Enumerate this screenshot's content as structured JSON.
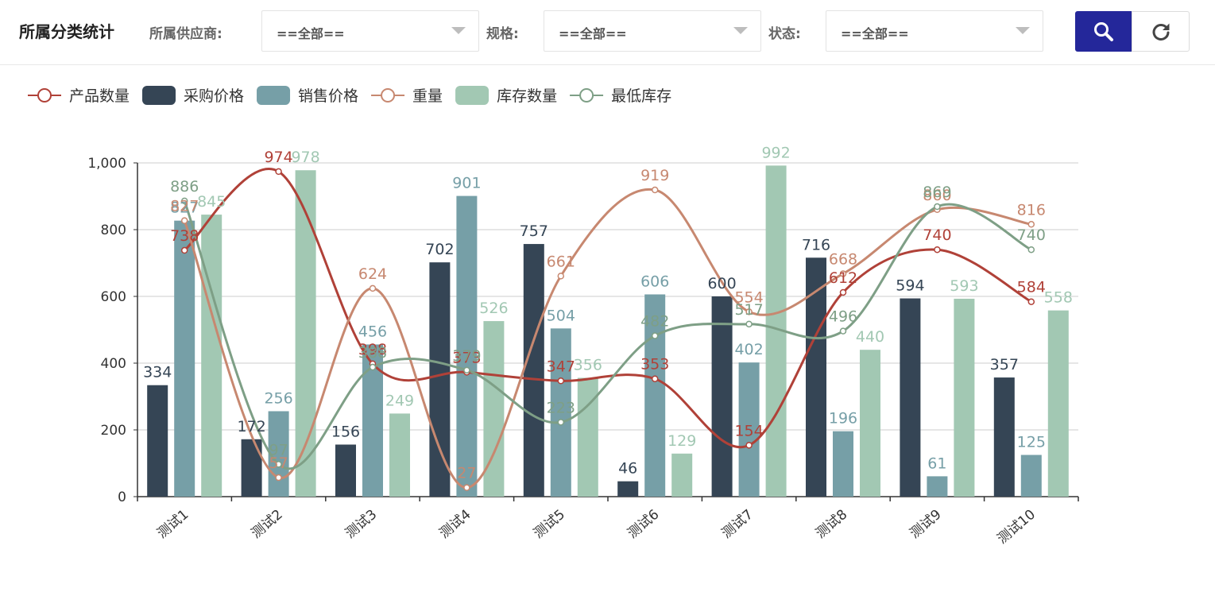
{
  "header": {
    "title": "所属分类统计",
    "filters": [
      {
        "label": "所属供应商:",
        "value": "==全部=="
      },
      {
        "label": "规格:",
        "value": "==全部=="
      },
      {
        "label": "状态:",
        "value": "==全部=="
      }
    ]
  },
  "buttons": {
    "search_icon": "search-icon",
    "refresh_icon": "refresh-icon"
  },
  "colors": {
    "accent": "#24279a",
    "series": [
      "#b04138",
      "#354555",
      "#769fa7",
      "#c78870",
      "#a2c8b3",
      "#7e9f86"
    ]
  },
  "chart_data": {
    "type": "bar",
    "categories": [
      "测试1",
      "测试2",
      "测试3",
      "测试4",
      "测试5",
      "测试6",
      "测试7",
      "测试8",
      "测试9",
      "测试10"
    ],
    "ylim": [
      0,
      1000
    ],
    "yticks": [
      0,
      200,
      400,
      600,
      800,
      1000
    ],
    "ytick_labels": [
      "0",
      "200",
      "400",
      "600",
      "800",
      "1,000"
    ],
    "legend_position": "top-left",
    "series": [
      {
        "name": "产品数量",
        "type": "line",
        "color": "#b04138",
        "values": [
          738,
          974,
          398,
          373,
          347,
          353,
          154,
          612,
          740,
          584
        ]
      },
      {
        "name": "采购价格",
        "type": "bar",
        "color": "#354555",
        "values": [
          334,
          172,
          156,
          702,
          757,
          46,
          600,
          716,
          594,
          357
        ]
      },
      {
        "name": "销售价格",
        "type": "bar",
        "color": "#769fa7",
        "values": [
          827,
          256,
          456,
          901,
          504,
          606,
          402,
          196,
          61,
          125
        ]
      },
      {
        "name": "重量",
        "type": "line",
        "color": "#c78870",
        "values": [
          827,
          57,
          624,
          27,
          661,
          919,
          554,
          668,
          860,
          816
        ]
      },
      {
        "name": "库存数量",
        "type": "bar",
        "color": "#a2c8b3",
        "values": [
          845,
          978,
          249,
          526,
          356,
          129,
          992,
          440,
          593,
          558
        ]
      },
      {
        "name": "最低库存",
        "type": "line",
        "color": "#7e9f86",
        "values": [
          886,
          97,
          388,
          379,
          223,
          482,
          517,
          496,
          869,
          740
        ]
      }
    ]
  }
}
